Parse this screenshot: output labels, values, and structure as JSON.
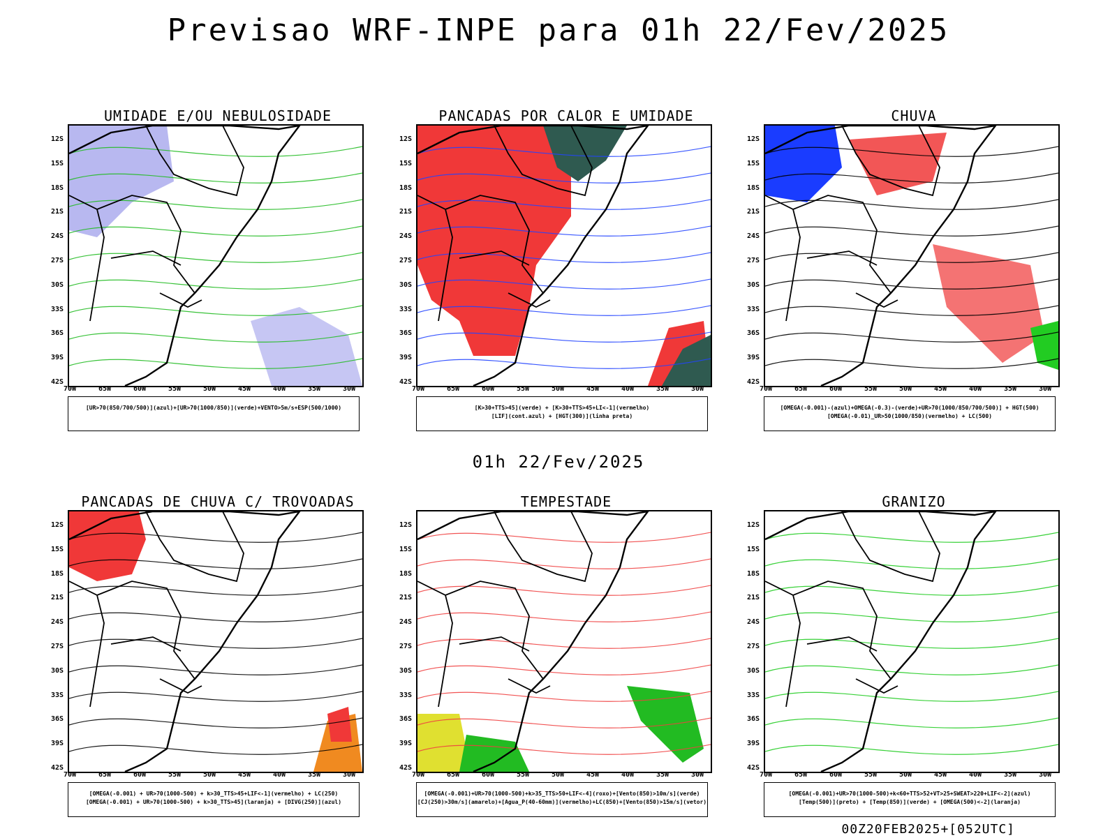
{
  "title": "Previsao WRF-INPE  para 01h 22/Fev/2025",
  "mid_date": "01h 22/Fev/2025",
  "footer": "00Z20FEB2025+[052UTC]",
  "lat_labels": [
    "12S",
    "15S",
    "18S",
    "21S",
    "24S",
    "27S",
    "30S",
    "33S",
    "36S",
    "39S",
    "42S"
  ],
  "lon_labels": [
    "70W",
    "65W",
    "60W",
    "55W",
    "50W",
    "45W",
    "40W",
    "35W",
    "30W"
  ],
  "panels": [
    {
      "title": "UMIDADE E/OU NEBULOSIDADE",
      "legend": [
        "[UR>70(850/700/500)](azul)+[UR>70(1000/850)](verde)+VENTO>5m/s+ESP(500/1000)"
      ],
      "colors": {
        "fill": "#b8b8f0",
        "line": "#22bb22",
        "accent": "#ff3333"
      }
    },
    {
      "title": "PANCADAS POR CALOR E UMIDADE",
      "legend": [
        "[K>30+TTS>45](verde) + [K>30+TTS>45+LI<-1](vermelho)",
        "[LIF](cont.azul) + [HGT(300)](linha preta)"
      ],
      "colors": {
        "fill": "#f03838",
        "line": "#2244ff",
        "accent": "#2f5a50"
      }
    },
    {
      "title": "CHUVA",
      "legend": [
        "[OMEGA(-0.001)-(azul)+OMEGA(-0.3)-(verde)+UR>70(1000/850/700/500)] + HGT(500)",
        "[OMEGA(-0.01)_UR>50(1000/850)(vermelho) + LC(500)"
      ],
      "colors": {
        "fill": "#f03838",
        "line": "#000000",
        "accent": "#1a3cff"
      }
    },
    {
      "title": "PANCADAS DE CHUVA C/ TROVOADAS",
      "legend": [
        "[OMEGA(-0.001) + UR>70(1000-500) + k>30_TTS>45+LIF<-1](vermelho) + LC(250)",
        "[OMEGA(-0.001) + UR>70(1000-500) + k>30_TTS>45](laranja) + [DIVG(250)](azul)"
      ],
      "colors": {
        "fill": "#f03838",
        "line": "#000000",
        "accent": "#f08a20"
      }
    },
    {
      "title": "TEMPESTADE",
      "legend": [
        "[OMEGA(-0.001)+UR>70(1000-500)+k>35_TTS>50+LIF<-4](roxo)+[Vento(850)>10m/s](verde)",
        "[CJ(250)>30m/s](amarelo)+[Agua_P(40-60mm)](vermelho)+LC(850)+[Vento(850)>15m/s](vetor)"
      ],
      "colors": {
        "fill": "#22bb22",
        "line": "#f04040",
        "accent": "#e0e030"
      }
    },
    {
      "title": "GRANIZO",
      "legend": [
        "[OMEGA(-0.001)+UR>70(1000-500)+k<60+TTS>52+VT>25+SWEAT>220+LIF<-2](azul)",
        "[Temp(500)](preto) + [Temp(850)](verde) + [OMEGA(500)<-2](laranja)"
      ],
      "colors": {
        "fill": "#ffffff",
        "line": "#22cc22",
        "accent": "#f08a20"
      }
    }
  ]
}
